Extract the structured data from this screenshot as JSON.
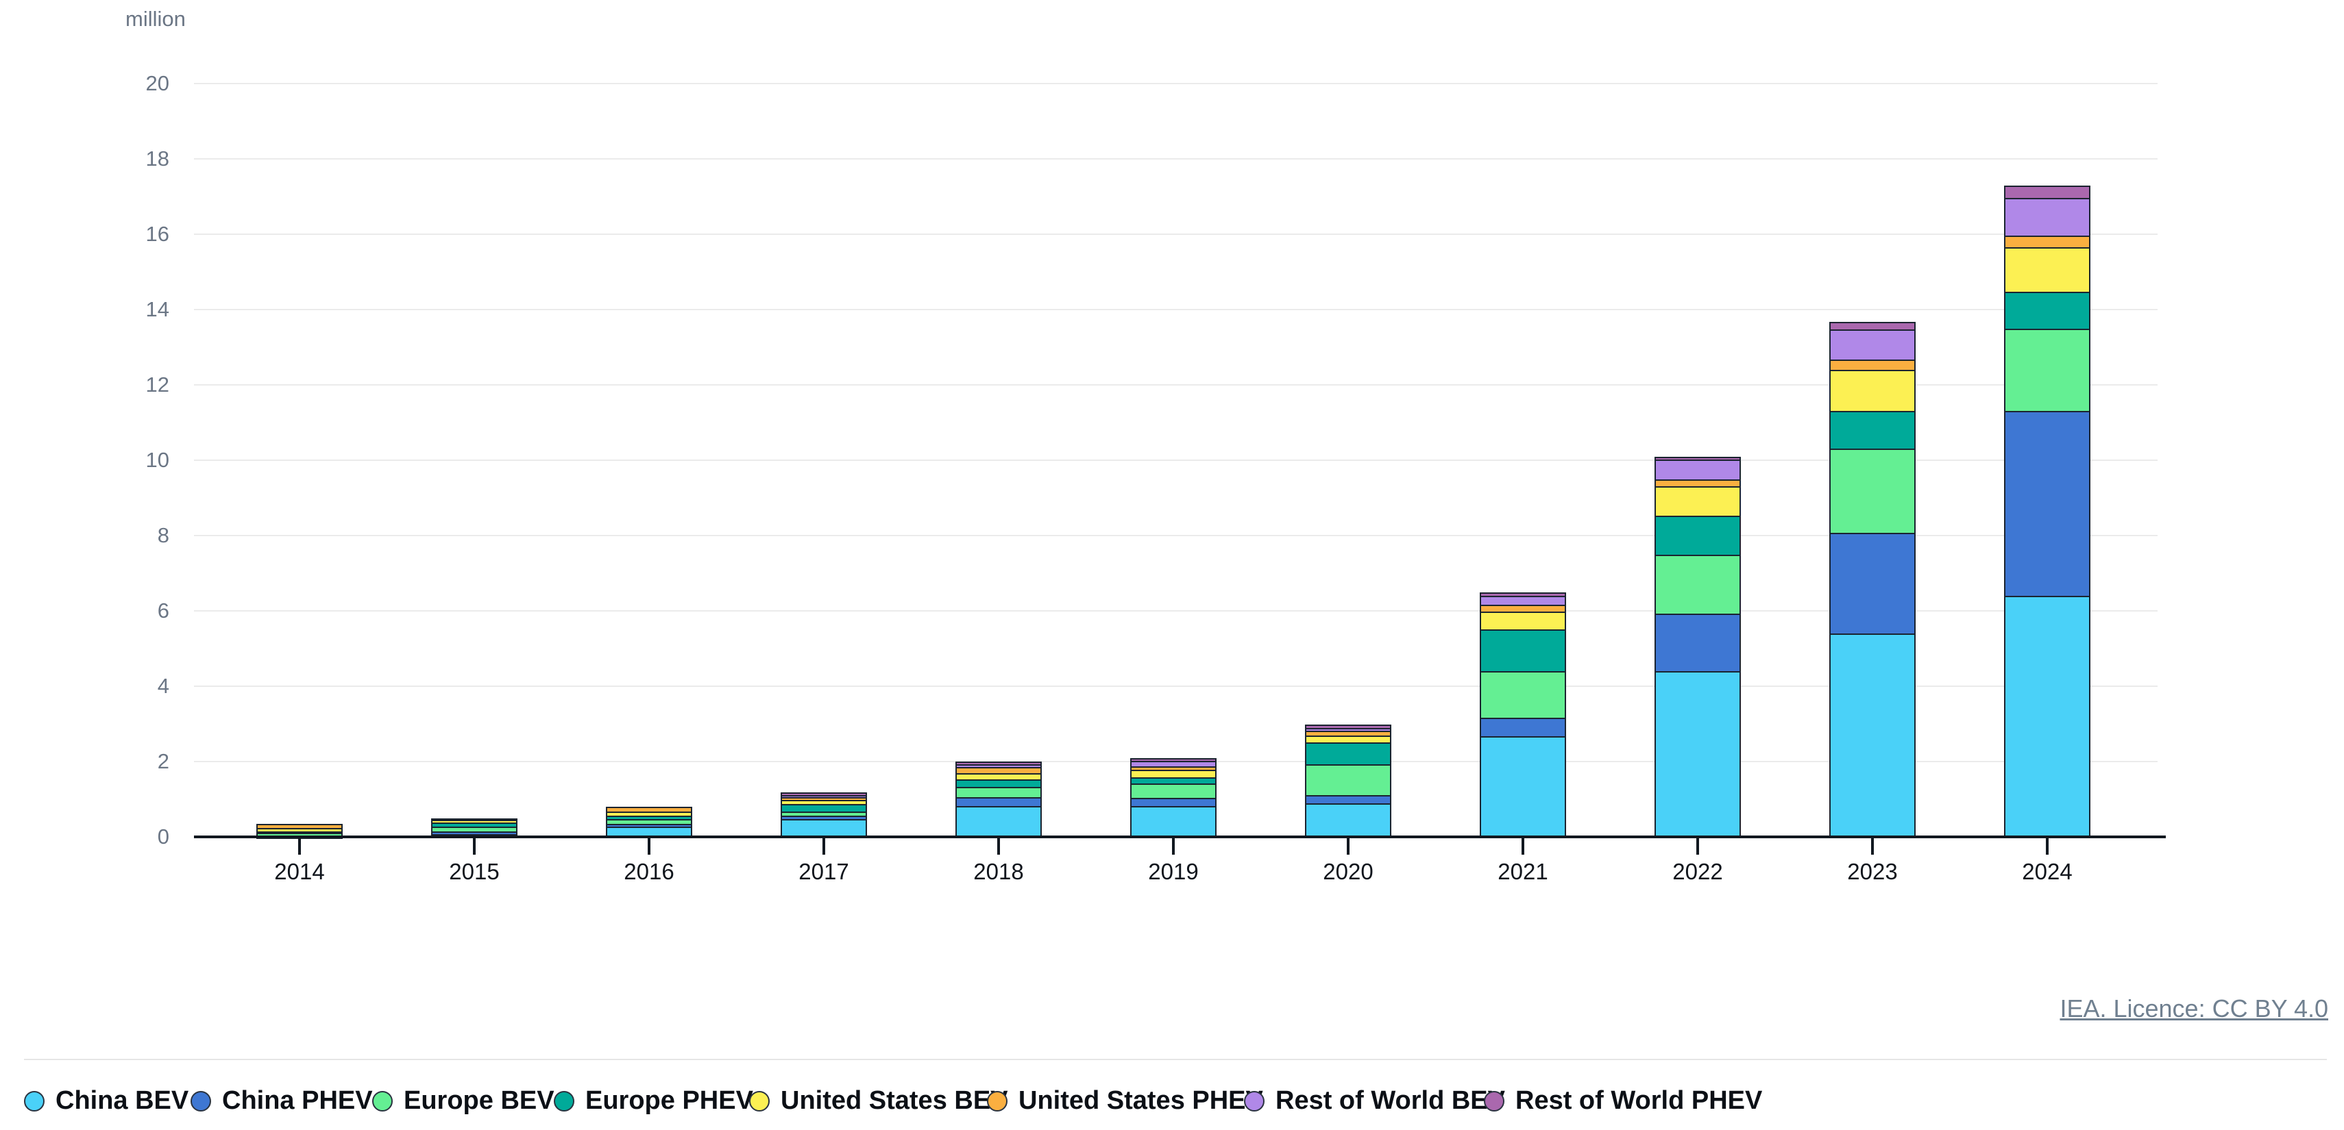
{
  "page": {
    "background": "#ffffff"
  },
  "attribution": "IEA. Licence: CC BY 4.0",
  "chart_data": {
    "type": "bar",
    "stacked": true,
    "title": "",
    "unit_label": "million",
    "ylabel": "million",
    "xlabel": "",
    "ylim": [
      0,
      20
    ],
    "ytick_step": 2,
    "grid": true,
    "legend_position": "bottom",
    "categories": [
      "2014",
      "2015",
      "2016",
      "2017",
      "2018",
      "2019",
      "2020",
      "2021",
      "2022",
      "2023",
      "2024"
    ],
    "series": [
      {
        "name": "China BEV",
        "color": "#4AD1F8",
        "values": [
          0.02,
          0.07,
          0.28,
          0.48,
          0.82,
          0.82,
          0.89,
          2.67,
          4.4,
          5.4,
          6.4
        ]
      },
      {
        "name": "China PHEV",
        "color": "#3E77D3",
        "values": [
          0.01,
          0.08,
          0.06,
          0.08,
          0.24,
          0.21,
          0.22,
          0.5,
          1.52,
          2.67,
          4.9
        ]
      },
      {
        "name": "Europe BEV",
        "color": "#64EF93",
        "values": [
          0.09,
          0.13,
          0.13,
          0.11,
          0.26,
          0.39,
          0.82,
          1.23,
          1.57,
          2.24,
          2.19
        ]
      },
      {
        "name": "Europe PHEV",
        "color": "#00AA99",
        "values": [
          0.02,
          0.1,
          0.09,
          0.21,
          0.21,
          0.16,
          0.58,
          1.1,
          1.03,
          1.0,
          0.98
        ]
      },
      {
        "name": "United States BEV",
        "color": "#FCF053",
        "values": [
          0.1,
          0.09,
          0.11,
          0.1,
          0.16,
          0.21,
          0.18,
          0.48,
          0.78,
          1.09,
          1.19
        ]
      },
      {
        "name": "United States PHEV",
        "color": "#FAAF40",
        "values": [
          0.1,
          0.03,
          0.13,
          0.08,
          0.16,
          0.08,
          0.12,
          0.18,
          0.19,
          0.27,
          0.3
        ]
      },
      {
        "name": "Rest of World BEV",
        "color": "#B088E8",
        "values": [
          0.0,
          0.0,
          0.0,
          0.05,
          0.07,
          0.14,
          0.08,
          0.24,
          0.52,
          0.8,
          1.0
        ]
      },
      {
        "name": "Rest of World PHEV",
        "color": "#AA68AE",
        "values": [
          0.0,
          0.0,
          0.0,
          0.07,
          0.08,
          0.08,
          0.1,
          0.09,
          0.09,
          0.21,
          0.33
        ]
      }
    ],
    "totals": [
      0.34,
      0.5,
      0.8,
      1.18,
      2.0,
      2.09,
      2.99,
      6.49,
      10.1,
      13.68,
      17.29
    ]
  }
}
